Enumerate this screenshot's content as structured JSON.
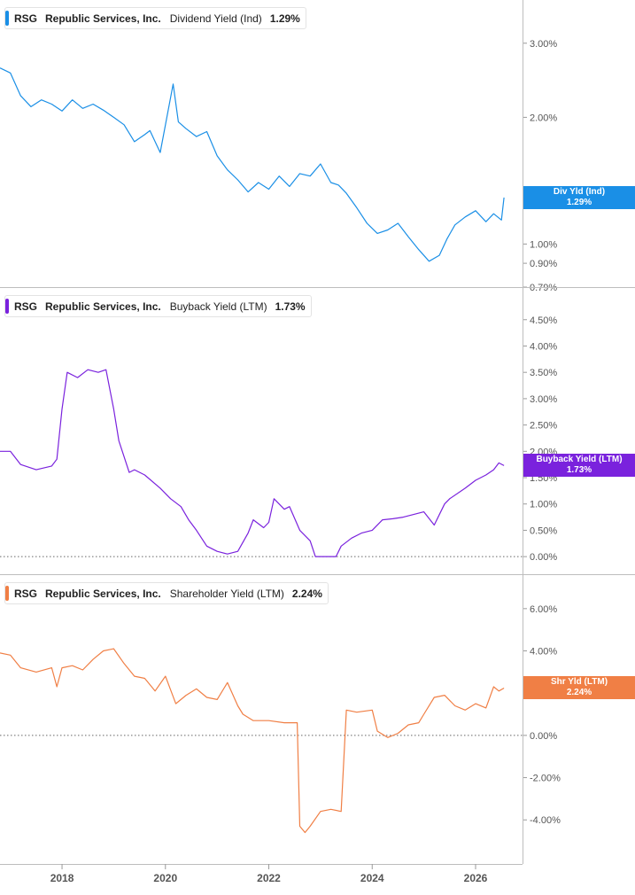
{
  "colors": {
    "dividend": "#1a8fe6",
    "buyback": "#7a22dd",
    "shareholder": "#f07f45",
    "axis": "#9a9a9a",
    "text": "#555555"
  },
  "x_axis": {
    "ticks": [
      "2018",
      "2020",
      "2022",
      "2024",
      "2026"
    ]
  },
  "chart_data": [
    {
      "type": "line",
      "ticker": "RSG",
      "company": "Republic Services, Inc.",
      "metric": "Dividend Yield (Ind)",
      "last_value": "1.29%",
      "flag": {
        "line1": "Div Yld (Ind)",
        "line2": "1.29%"
      },
      "y_scale": "log",
      "ylim": [
        0.79,
        3.8
      ],
      "y_ticks": [
        {
          "value": 3.0,
          "label": "3.00%"
        },
        {
          "value": 2.0,
          "label": "2.00%"
        },
        {
          "value": 1.0,
          "label": "1.00%"
        },
        {
          "value": 0.9,
          "label": "0.90%"
        },
        {
          "value": 0.79,
          "label": "0.79%"
        }
      ],
      "zero_line": false,
      "series": [
        {
          "x": [
            2016.8,
            2017.0,
            2017.2,
            2017.4,
            2017.6,
            2017.8,
            2018.0,
            2018.2,
            2018.4,
            2018.6,
            2018.8,
            2019.0,
            2019.2,
            2019.4,
            2019.6,
            2019.7,
            2019.9,
            2020.15,
            2020.25,
            2020.4,
            2020.6,
            2020.8,
            2021.0,
            2021.2,
            2021.4,
            2021.6,
            2021.8,
            2022.0,
            2022.2,
            2022.4,
            2022.6,
            2022.8,
            2023.0,
            2023.2,
            2023.35,
            2023.5,
            2023.7,
            2023.9,
            2024.1,
            2024.3,
            2024.5,
            2024.7,
            2024.9,
            2025.1,
            2025.3,
            2025.45,
            2025.6,
            2025.8,
            2026.0,
            2026.2,
            2026.35,
            2026.5,
            2026.55
          ],
          "y": [
            2.62,
            2.55,
            2.25,
            2.12,
            2.2,
            2.15,
            2.07,
            2.2,
            2.1,
            2.15,
            2.08,
            2.0,
            1.92,
            1.75,
            1.82,
            1.86,
            1.65,
            2.4,
            1.95,
            1.88,
            1.8,
            1.85,
            1.62,
            1.5,
            1.42,
            1.33,
            1.4,
            1.35,
            1.45,
            1.37,
            1.47,
            1.45,
            1.55,
            1.4,
            1.38,
            1.32,
            1.22,
            1.12,
            1.06,
            1.08,
            1.12,
            1.04,
            0.97,
            0.91,
            0.94,
            1.03,
            1.11,
            1.16,
            1.2,
            1.13,
            1.18,
            1.14,
            1.29
          ]
        }
      ]
    },
    {
      "type": "line",
      "ticker": "RSG",
      "company": "Republic Services, Inc.",
      "metric": "Buyback Yield (LTM)",
      "last_value": "1.73%",
      "flag": {
        "line1": "Buyback Yield (LTM)",
        "line2": "1.73%"
      },
      "y_scale": "linear",
      "ylim": [
        -0.25,
        4.9
      ],
      "y_ticks": [
        {
          "value": 4.5,
          "label": "4.50%"
        },
        {
          "value": 4.0,
          "label": "4.00%"
        },
        {
          "value": 3.5,
          "label": "3.50%"
        },
        {
          "value": 3.0,
          "label": "3.00%"
        },
        {
          "value": 2.5,
          "label": "2.50%"
        },
        {
          "value": 2.0,
          "label": "2.00%"
        },
        {
          "value": 1.5,
          "label": "1.50%"
        },
        {
          "value": 1.0,
          "label": "1.00%"
        },
        {
          "value": 0.5,
          "label": "0.50%"
        },
        {
          "value": 0.0,
          "label": "0.00%"
        }
      ],
      "zero_line": true,
      "series": [
        {
          "x": [
            2016.8,
            2017.0,
            2017.2,
            2017.5,
            2017.8,
            2017.9,
            2018.0,
            2018.1,
            2018.3,
            2018.5,
            2018.7,
            2018.85,
            2019.0,
            2019.1,
            2019.3,
            2019.4,
            2019.6,
            2019.9,
            2020.1,
            2020.3,
            2020.45,
            2020.6,
            2020.8,
            2021.0,
            2021.2,
            2021.4,
            2021.6,
            2021.7,
            2021.9,
            2022.0,
            2022.1,
            2022.3,
            2022.4,
            2022.6,
            2022.8,
            2022.9,
            2023.1,
            2023.3,
            2023.4,
            2023.6,
            2023.8,
            2024.0,
            2024.2,
            2024.4,
            2024.6,
            2024.8,
            2025.0,
            2025.2,
            2025.4,
            2025.5,
            2025.8,
            2026.0,
            2026.2,
            2026.35,
            2026.45,
            2026.55
          ],
          "y": [
            2.0,
            2.0,
            1.75,
            1.65,
            1.72,
            1.85,
            2.8,
            3.5,
            3.4,
            3.55,
            3.5,
            3.55,
            2.8,
            2.2,
            1.6,
            1.65,
            1.55,
            1.3,
            1.1,
            0.95,
            0.7,
            0.5,
            0.2,
            0.1,
            0.05,
            0.1,
            0.45,
            0.7,
            0.55,
            0.65,
            1.1,
            0.9,
            0.95,
            0.5,
            0.3,
            0.0,
            0.0,
            0.0,
            0.2,
            0.35,
            0.45,
            0.5,
            0.7,
            0.72,
            0.75,
            0.8,
            0.85,
            0.6,
            1.0,
            1.1,
            1.3,
            1.45,
            1.55,
            1.65,
            1.78,
            1.73
          ]
        }
      ]
    },
    {
      "type": "line",
      "ticker": "RSG",
      "company": "Republic Services, Inc.",
      "metric": "Shareholder Yield (LTM)",
      "last_value": "2.24%",
      "flag": {
        "line1": "Shr Yld (LTM)",
        "line2": "2.24%"
      },
      "y_scale": "linear",
      "ylim": [
        -5.5,
        7.0
      ],
      "y_ticks": [
        {
          "value": 6.0,
          "label": "6.00%"
        },
        {
          "value": 4.0,
          "label": "4.00%"
        },
        {
          "value": 2.0,
          "label": "2.00%"
        },
        {
          "value": 0.0,
          "label": "0.00%"
        },
        {
          "value": -2.0,
          "label": "-2.00%"
        },
        {
          "value": -4.0,
          "label": "-4.00%"
        }
      ],
      "zero_line": true,
      "series": [
        {
          "x": [
            2016.8,
            2017.0,
            2017.2,
            2017.5,
            2017.8,
            2017.9,
            2018.0,
            2018.2,
            2018.4,
            2018.6,
            2018.8,
            2019.0,
            2019.2,
            2019.4,
            2019.6,
            2019.8,
            2020.0,
            2020.2,
            2020.4,
            2020.6,
            2020.8,
            2021.0,
            2021.2,
            2021.4,
            2021.5,
            2021.7,
            2022.0,
            2022.3,
            2022.55,
            2022.6,
            2022.7,
            2022.8,
            2023.0,
            2023.2,
            2023.4,
            2023.5,
            2023.7,
            2024.0,
            2024.1,
            2024.3,
            2024.5,
            2024.7,
            2024.9,
            2025.0,
            2025.2,
            2025.4,
            2025.6,
            2025.8,
            2026.0,
            2026.2,
            2026.35,
            2026.45,
            2026.55
          ],
          "y": [
            3.9,
            3.8,
            3.2,
            3.0,
            3.2,
            2.3,
            3.2,
            3.3,
            3.1,
            3.6,
            4.0,
            4.1,
            3.4,
            2.8,
            2.7,
            2.1,
            2.8,
            1.5,
            1.9,
            2.2,
            1.8,
            1.7,
            2.5,
            1.4,
            1.0,
            0.7,
            0.7,
            0.6,
            0.6,
            -4.3,
            -4.6,
            -4.3,
            -3.6,
            -3.5,
            -3.6,
            1.2,
            1.1,
            1.2,
            0.2,
            -0.1,
            0.1,
            0.5,
            0.6,
            1.0,
            1.8,
            1.9,
            1.4,
            1.2,
            1.5,
            1.3,
            2.3,
            2.1,
            2.24
          ]
        }
      ]
    }
  ]
}
